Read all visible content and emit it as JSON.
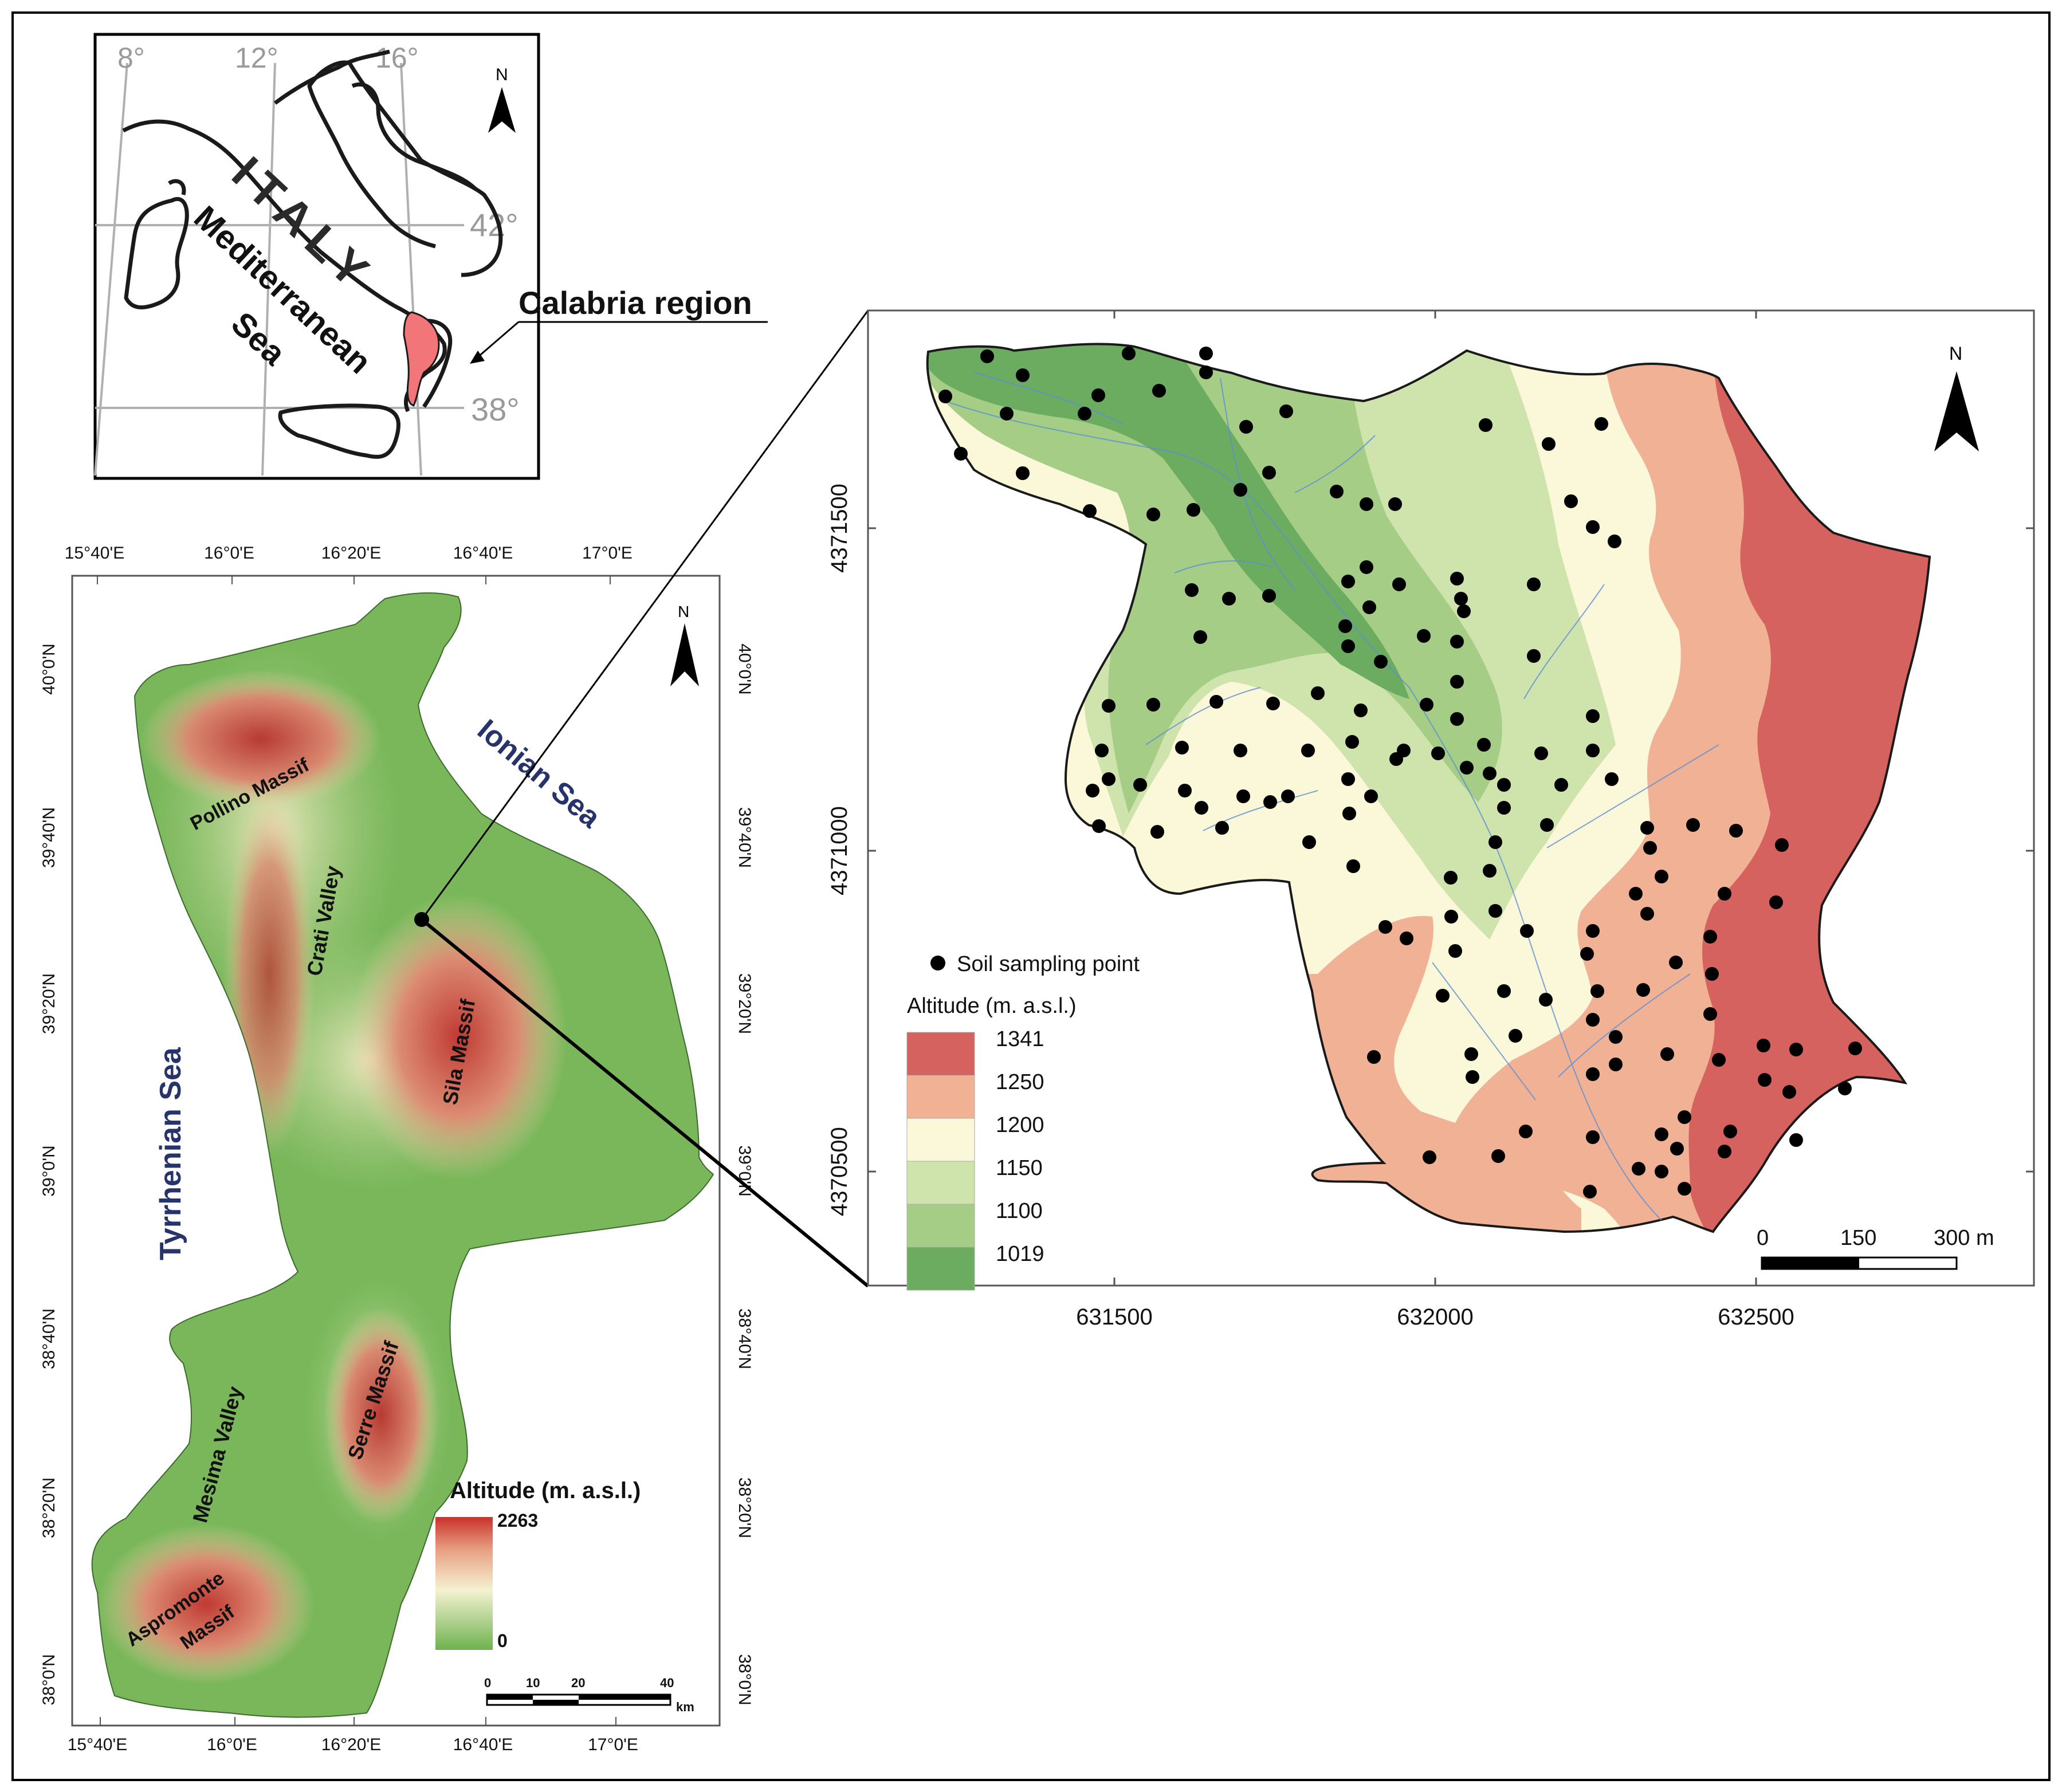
{
  "inset": {
    "lon_labels": [
      "8°",
      "12°",
      "16°"
    ],
    "lat_labels": [
      "42°",
      "38°"
    ],
    "country": "ITALY",
    "sea": [
      "Mediterranean",
      "Sea"
    ],
    "region_label": "Calabria region",
    "north": "N"
  },
  "calabria": {
    "top_ticks": [
      "15°40'E",
      "16°0'E",
      "16°20'E",
      "16°40'E",
      "17°0'E"
    ],
    "bottom_ticks": [
      "15°40'E",
      "16°0'E",
      "16°20'E",
      "16°40'E",
      "17°0'E"
    ],
    "lat_ticks": [
      "40°0'N",
      "39°40'N",
      "39°20'N",
      "39°0'N",
      "38°40'N",
      "38°20'N",
      "38°0'N"
    ],
    "places": {
      "pollino": "Pollino Massif",
      "crati": "Crati Valley",
      "sila": "Sila Massif",
      "ionian": "Ionian Sea",
      "tyrrhenian": "Tyrrhenian Sea",
      "mesima": "Mesima Valley",
      "serre": "Serre Massif",
      "aspromonte_1": "Aspromonte",
      "aspromonte_2": "Massif"
    },
    "legend": {
      "title": "Altitude (m. a.s.l.)",
      "max": "2263",
      "min": "0"
    },
    "scale": {
      "labels": [
        "0",
        "10",
        "20",
        "40"
      ],
      "unit": "km"
    },
    "north": "N",
    "colors": {
      "low": "#6fb24f",
      "mid": "#f4f2d2",
      "high": "#c8322c"
    }
  },
  "study": {
    "x_ticks": [
      "631500",
      "632000",
      "632500"
    ],
    "y_ticks": [
      "4371500",
      "4371000",
      "4370500"
    ],
    "point_legend": "Soil sampling point",
    "legend_title": "Altitude (m. a.s.l.)",
    "classes": [
      {
        "label": "1341",
        "color": "#d6625f"
      },
      {
        "label": "1250",
        "color": "#f0b194"
      },
      {
        "label": "1200",
        "color": "#fbf7d9"
      },
      {
        "label": "1150",
        "color": "#cfe3ac"
      },
      {
        "label": "1100",
        "color": "#a5cd86"
      },
      {
        "label": "1019",
        "color": "#6cac61"
      }
    ],
    "scale": {
      "labels": [
        "0",
        "150",
        "300 m"
      ]
    },
    "north": "N"
  }
}
